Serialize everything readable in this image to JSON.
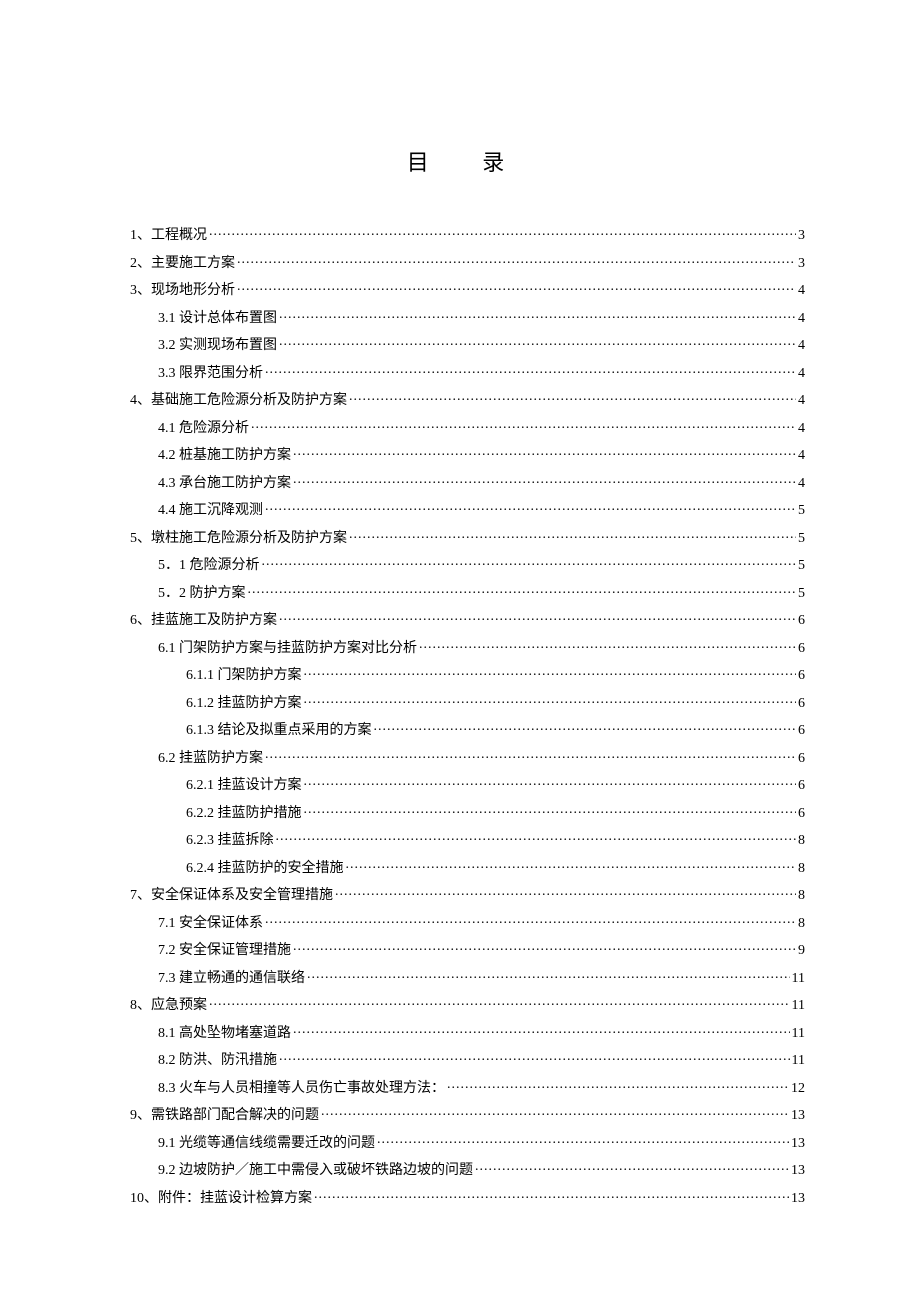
{
  "title": "目 录",
  "text_color": "#000000",
  "background_color": "#ffffff",
  "base_fontsize": 14,
  "title_fontsize": 22,
  "toc": [
    {
      "level": 0,
      "label": "1、工程概况",
      "page": "3"
    },
    {
      "level": 0,
      "label": "2、主要施工方案",
      "page": "3"
    },
    {
      "level": 0,
      "label": "3、现场地形分析",
      "page": "4"
    },
    {
      "level": 1,
      "label": "3.1 设计总体布置图",
      "page": "4"
    },
    {
      "level": 1,
      "label": "3.2 实测现场布置图",
      "page": "4"
    },
    {
      "level": 1,
      "label": "3.3 限界范围分析",
      "page": "4"
    },
    {
      "level": 0,
      "label": "4、基础施工危险源分析及防护方案",
      "page": "4"
    },
    {
      "level": 1,
      "label": "4.1 危险源分析",
      "page": "4"
    },
    {
      "level": 1,
      "label": "4.2 桩基施工防护方案",
      "page": "4"
    },
    {
      "level": 1,
      "label": "4.3 承台施工防护方案",
      "page": "4"
    },
    {
      "level": 1,
      "label": "4.4 施工沉降观测",
      "page": "5"
    },
    {
      "level": 0,
      "label": "5、墩柱施工危险源分析及防护方案",
      "page": "5"
    },
    {
      "level": 1,
      "label": "5．1 危险源分析",
      "page": "5"
    },
    {
      "level": 1,
      "label": "5．2 防护方案",
      "page": "5"
    },
    {
      "level": 0,
      "label": "6、挂蓝施工及防护方案",
      "page": "6"
    },
    {
      "level": 1,
      "label": "6.1 门架防护方案与挂蓝防护方案对比分析",
      "page": "6"
    },
    {
      "level": 2,
      "label": "6.1.1 门架防护方案",
      "page": "6"
    },
    {
      "level": 2,
      "label": "6.1.2 挂蓝防护方案",
      "page": "6"
    },
    {
      "level": 2,
      "label": "6.1.3 结论及拟重点采用的方案",
      "page": "6"
    },
    {
      "level": 1,
      "label": "6.2 挂蓝防护方案",
      "page": "6"
    },
    {
      "level": 2,
      "label": "6.2.1 挂蓝设计方案",
      "page": "6"
    },
    {
      "level": 2,
      "label": "6.2.2 挂蓝防护措施",
      "page": "6"
    },
    {
      "level": 2,
      "label": "6.2.3 挂蓝拆除",
      "page": "8"
    },
    {
      "level": 2,
      "label": "6.2.4 挂蓝防护的安全措施",
      "page": "8"
    },
    {
      "level": 0,
      "label": "7、安全保证体系及安全管理措施",
      "page": "8"
    },
    {
      "level": 1,
      "label": "7.1 安全保证体系",
      "page": "8"
    },
    {
      "level": 1,
      "label": "7.2 安全保证管理措施",
      "page": "9"
    },
    {
      "level": 1,
      "label": "7.3 建立畅通的通信联络",
      "page": "11"
    },
    {
      "level": 0,
      "label": "8、应急预案",
      "page": "11"
    },
    {
      "level": 1,
      "label": "8.1 高处坠物堵塞道路",
      "page": "11"
    },
    {
      "level": 1,
      "label": "8.2 防洪、防汛措施",
      "page": "11"
    },
    {
      "level": 1,
      "label": "8.3 火车与人员相撞等人员伤亡事故处理方法：",
      "page": "12"
    },
    {
      "level": 0,
      "label": "9、需铁路部门配合解决的问题",
      "page": "13"
    },
    {
      "level": 1,
      "label": "9.1 光缆等通信线缆需要迁改的问题",
      "page": "13"
    },
    {
      "level": 1,
      "label": "9.2 边坡防护／施工中需侵入或破坏铁路边坡的问题",
      "page": "13"
    },
    {
      "level": 0,
      "label": "10、附件：挂蓝设计检算方案",
      "page": "13"
    }
  ]
}
